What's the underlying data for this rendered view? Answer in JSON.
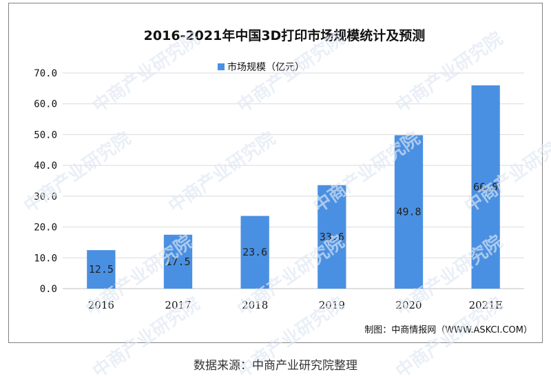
{
  "chart_data": {
    "type": "bar",
    "title": "2016-2021年中国3D打印市场规模统计及预测",
    "categories": [
      "2016",
      "2017",
      "2018",
      "2019",
      "2020",
      "2021E"
    ],
    "series": [
      {
        "name": "市场规模（亿元）",
        "values": [
          12.5,
          17.5,
          23.6,
          33.6,
          49.8,
          66.0
        ]
      }
    ],
    "data_labels": [
      "12.5",
      "17.5",
      "23.6",
      "33.6",
      "49.8",
      "66.0"
    ],
    "ylim": [
      0,
      70
    ],
    "yticks": [
      0,
      10,
      20,
      30,
      40,
      50,
      60,
      70
    ],
    "ytick_labels": [
      "0.0",
      "10.0",
      "20.0",
      "30.0",
      "40.0",
      "50.0",
      "60.0",
      "70.0"
    ],
    "grid": true,
    "legend_position": "top",
    "bar_color": "#4a90e2"
  },
  "credit": "制图：中商情报网（WWW.ASKCI.COM）",
  "source_caption": "数据来源：中商产业研究院整理",
  "watermark_text": "中商产业研究院"
}
